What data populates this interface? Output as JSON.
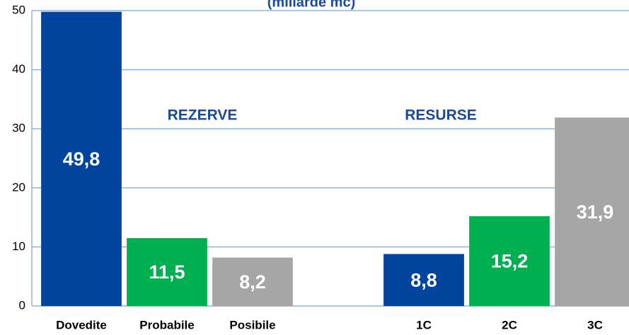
{
  "chart_data": {
    "type": "bar",
    "title": "(miliarde mc)",
    "categories": [
      "Dovedite",
      "Probabile",
      "Posibile",
      null,
      "1C",
      "2C",
      "3C"
    ],
    "values": [
      49.8,
      11.5,
      8.2,
      null,
      8.8,
      15.2,
      31.9
    ],
    "value_labels": [
      "49,8",
      "11,5",
      "8,2",
      null,
      "8,8",
      "15,2",
      "31,9"
    ],
    "colors": [
      "#00449e",
      "#00b050",
      "#a6a6a6",
      null,
      "#00449e",
      "#00b050",
      "#a6a6a6"
    ],
    "annotations": [
      "REZERVE",
      "RESURSE"
    ],
    "ylim": [
      0,
      50
    ],
    "yticks": [
      0,
      10,
      20,
      30,
      40,
      50
    ],
    "grid": true
  }
}
